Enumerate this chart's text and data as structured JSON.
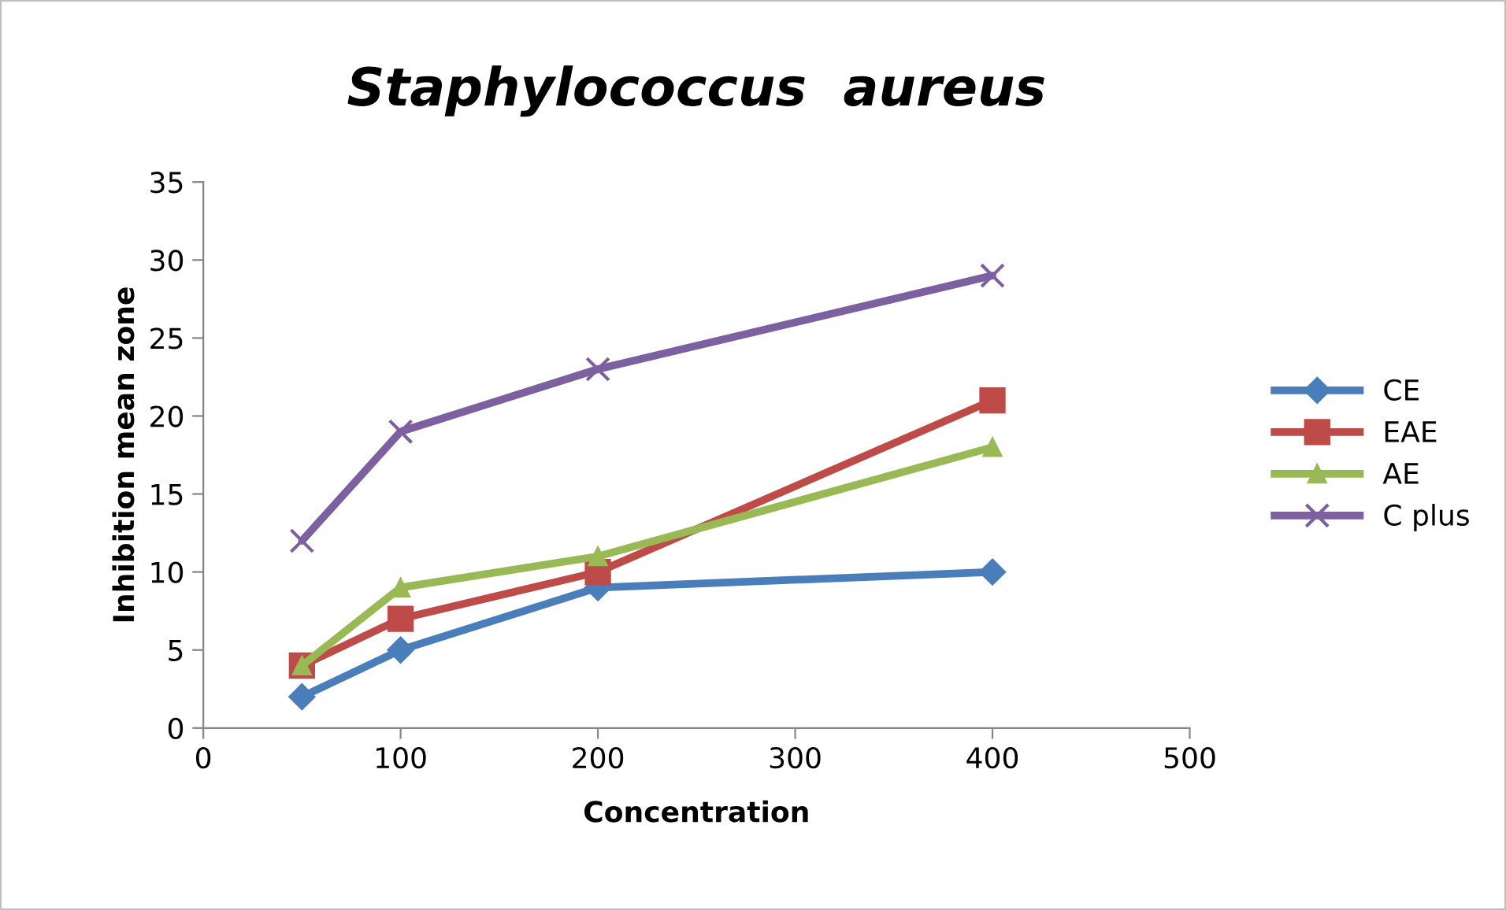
{
  "chart_data": {
    "type": "line",
    "title": "Staphylococcus  aureus",
    "xlabel": "Concentration",
    "ylabel": "Inhibition mean zone",
    "x": [
      50,
      100,
      200,
      400
    ],
    "series": [
      {
        "name": "CE",
        "color": "#4a7ebb",
        "marker": "diamond",
        "values": [
          2,
          5,
          9,
          10
        ]
      },
      {
        "name": "EAE",
        "color": "#be4b48",
        "marker": "square",
        "values": [
          4,
          7,
          10,
          21
        ]
      },
      {
        "name": "AE",
        "color": "#98b954",
        "marker": "triangle",
        "values": [
          4,
          9,
          11,
          18
        ]
      },
      {
        "name": "C plus",
        "color": "#7d60a0",
        "marker": "cross",
        "values": [
          12,
          19,
          23,
          29
        ]
      }
    ],
    "xlim": [
      0,
      500
    ],
    "xticks": [
      0,
      100,
      200,
      300,
      400,
      500
    ],
    "ylim": [
      0,
      35
    ],
    "yticks": [
      0,
      5,
      10,
      15,
      20,
      25,
      30,
      35
    ],
    "grid": false,
    "legend": "right",
    "line_style": "solid"
  }
}
